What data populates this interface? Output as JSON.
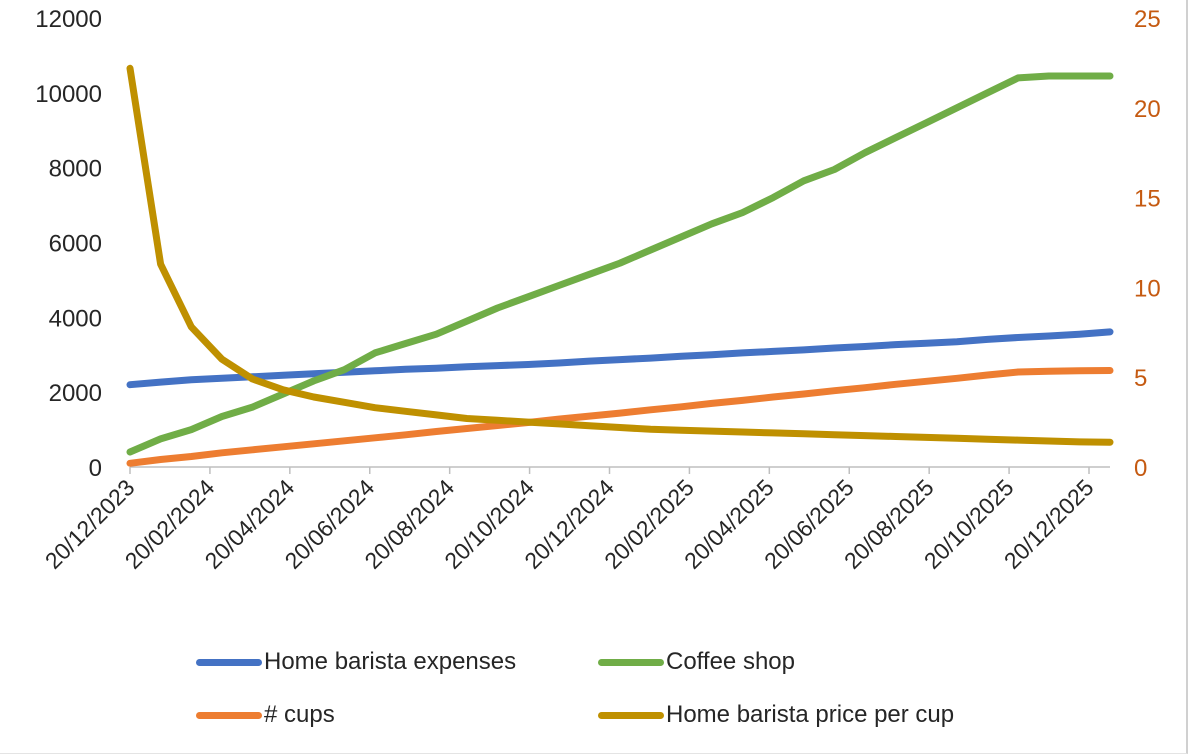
{
  "chart_data": {
    "type": "line",
    "title": "",
    "xlabel": "",
    "ylabel": "",
    "x_ticks": [
      "20/12/2023",
      "20/02/2024",
      "20/04/2024",
      "20/06/2024",
      "20/08/2024",
      "20/10/2024",
      "20/12/2024",
      "20/02/2025",
      "20/04/2025",
      "20/06/2025",
      "20/08/2025",
      "20/10/2025",
      "20/12/2025"
    ],
    "y_left": {
      "ticks": [
        "0",
        "2000",
        "4000",
        "6000",
        "8000",
        "10000",
        "12000"
      ],
      "ylim": [
        0,
        12000
      ]
    },
    "y_right": {
      "ticks": [
        "0",
        "5",
        "10",
        "15",
        "20",
        "25"
      ],
      "ylim": [
        0,
        25
      ],
      "color": "#C55A11"
    },
    "grid": false,
    "legend_position": "bottom",
    "series": [
      {
        "name": "Home barista expenses",
        "axis": "left",
        "color": "#4472C4",
        "values": [
          2200,
          2270,
          2330,
          2370,
          2410,
          2450,
          2490,
          2530,
          2570,
          2610,
          2640,
          2680,
          2710,
          2740,
          2780,
          2830,
          2870,
          2910,
          2960,
          3000,
          3050,
          3090,
          3130,
          3180,
          3220,
          3270,
          3310,
          3350,
          3410,
          3460,
          3500,
          3550,
          3610
        ]
      },
      {
        "name": "Coffee shop",
        "axis": "left",
        "color": "#70AD47",
        "values": [
          400,
          750,
          1000,
          1350,
          1600,
          1950,
          2300,
          2600,
          3050,
          3300,
          3550,
          3900,
          4250,
          4550,
          4850,
          5150,
          5450,
          5800,
          6150,
          6500,
          6800,
          7200,
          7650,
          7950,
          8400,
          8800,
          9200,
          9600,
          10000,
          10400,
          10450,
          10450,
          10450
        ]
      },
      {
        "name": "# cups",
        "axis": "left",
        "color": "#ED7D31",
        "values": [
          100,
          200,
          280,
          380,
          460,
          540,
          620,
          700,
          780,
          860,
          950,
          1030,
          1110,
          1190,
          1280,
          1360,
          1440,
          1530,
          1610,
          1700,
          1780,
          1870,
          1950,
          2040,
          2120,
          2210,
          2290,
          2370,
          2460,
          2540,
          2560,
          2570,
          2580
        ]
      },
      {
        "name": "Home barista price per cup",
        "axis": "right",
        "color": "#BF9000",
        "values": [
          22.2,
          11.3,
          7.8,
          6.0,
          4.9,
          4.3,
          3.9,
          3.6,
          3.3,
          3.1,
          2.9,
          2.7,
          2.6,
          2.5,
          2.4,
          2.3,
          2.2,
          2.1,
          2.05,
          2.0,
          1.95,
          1.9,
          1.85,
          1.8,
          1.75,
          1.7,
          1.65,
          1.6,
          1.55,
          1.5,
          1.45,
          1.4,
          1.38
        ]
      }
    ]
  }
}
